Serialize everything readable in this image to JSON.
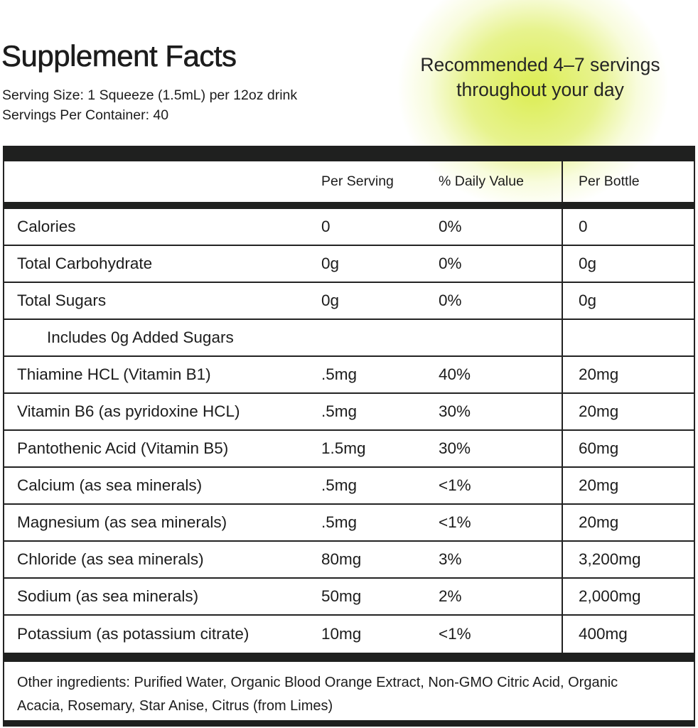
{
  "header": {
    "title": "Supplement Facts",
    "serving_size": "Serving Size: 1 Squeeze (1.5mL) per 12oz drink",
    "servings_per_container": "Servings Per Container: 40",
    "recommendation_line1": "Recommended 4–7 servings",
    "recommendation_line2": "throughout your day"
  },
  "table": {
    "columns": [
      "",
      "Per Serving",
      "% Daily Value",
      "Per Bottle"
    ],
    "rows": [
      {
        "name": "Calories",
        "per_serving": "0",
        "daily_value": "0%",
        "per_bottle": "0",
        "indent": false
      },
      {
        "name": "Total Carbohydrate",
        "per_serving": "0g",
        "daily_value": "0%",
        "per_bottle": "0g",
        "indent": false
      },
      {
        "name": "Total Sugars",
        "per_serving": "0g",
        "daily_value": "0%",
        "per_bottle": "0g",
        "indent": false
      },
      {
        "name": "Includes 0g Added Sugars",
        "per_serving": "",
        "daily_value": "",
        "per_bottle": "",
        "indent": true
      },
      {
        "name": "Thiamine HCL (Vitamin B1)",
        "per_serving": ".5mg",
        "daily_value": "40%",
        "per_bottle": "20mg",
        "indent": false
      },
      {
        "name": "Vitamin B6 (as pyridoxine HCL)",
        "per_serving": ".5mg",
        "daily_value": "30%",
        "per_bottle": "20mg",
        "indent": false
      },
      {
        "name": "Pantothenic Acid (Vitamin B5)",
        "per_serving": "1.5mg",
        "daily_value": "30%",
        "per_bottle": "60mg",
        "indent": false
      },
      {
        "name": "Calcium (as sea minerals)",
        "per_serving": ".5mg",
        "daily_value": "<1%",
        "per_bottle": "20mg",
        "indent": false
      },
      {
        "name": "Magnesium (as sea minerals)",
        "per_serving": ".5mg",
        "daily_value": "<1%",
        "per_bottle": "20mg",
        "indent": false
      },
      {
        "name": "Chloride (as sea minerals)",
        "per_serving": "80mg",
        "daily_value": "3%",
        "per_bottle": "3,200mg",
        "indent": false
      },
      {
        "name": "Sodium (as sea minerals)",
        "per_serving": "50mg",
        "daily_value": "2%",
        "per_bottle": "2,000mg",
        "indent": false
      },
      {
        "name": "Potassium (as potassium citrate)",
        "per_serving": "10mg",
        "daily_value": "<1%",
        "per_bottle": "400mg",
        "indent": false
      }
    ]
  },
  "footer": {
    "other_ingredients": "Other ingredients: Purified Water, Organic Blood Orange Extract, Non-GMO Citric Acid, Organic Acacia, Rosemary, Star Anise, Citrus (from Limes)"
  },
  "colors": {
    "glow_accent": "#dcee5e",
    "band": "#1f201f",
    "text": "#1c1c1c"
  }
}
